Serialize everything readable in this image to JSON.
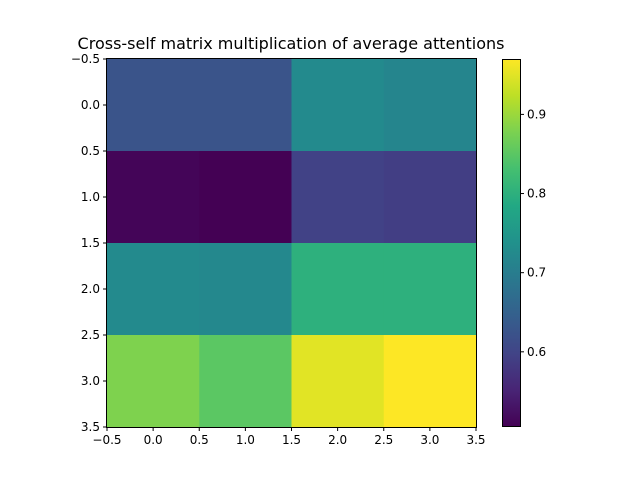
{
  "chart_data": {
    "type": "heatmap",
    "title": "Cross-self matrix multiplication of average attentions",
    "xlabel": "",
    "ylabel": "",
    "colormap": "viridis",
    "rows": 4,
    "cols": 4,
    "values": [
      [
        0.625,
        0.625,
        0.725,
        0.715
      ],
      [
        0.51,
        0.505,
        0.595,
        0.59
      ],
      [
        0.725,
        0.72,
        0.8,
        0.8
      ],
      [
        0.88,
        0.85,
        0.95,
        0.97
      ]
    ],
    "xlim": [
      -0.5,
      3.5
    ],
    "ylim": [
      3.5,
      -0.5
    ],
    "x_ticks": [
      "−0.5",
      "0.0",
      "0.5",
      "1.0",
      "1.5",
      "2.0",
      "2.5",
      "3.0",
      "3.5"
    ],
    "y_ticks": [
      "−0.5",
      "0.0",
      "0.5",
      "1.0",
      "1.5",
      "2.0",
      "2.5",
      "3.0",
      "3.5"
    ],
    "colorbar": {
      "min": 0.505,
      "max": 0.97,
      "ticks": [
        0.6,
        0.7,
        0.8,
        0.9
      ],
      "tick_labels": [
        "0.6",
        "0.7",
        "0.8",
        "0.9"
      ]
    }
  }
}
